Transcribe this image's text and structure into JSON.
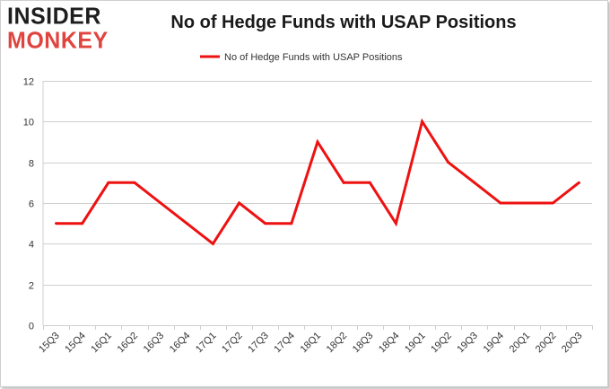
{
  "logo": {
    "line1": "INSIDER",
    "line2": "MONKEY"
  },
  "chart_data": {
    "type": "line",
    "title": "No of Hedge Funds with USAP Positions",
    "xlabel": "",
    "ylabel": "",
    "categories": [
      "15Q3",
      "15Q4",
      "16Q1",
      "16Q2",
      "16Q3",
      "16Q4",
      "17Q1",
      "17Q2",
      "17Q3",
      "17Q4",
      "18Q1",
      "18Q2",
      "18Q3",
      "18Q4",
      "19Q1",
      "19Q2",
      "19Q3",
      "19Q4",
      "20Q1",
      "20Q2",
      "20Q3"
    ],
    "series": [
      {
        "name": "No of Hedge Funds with USAP Positions",
        "color": "#ee1111",
        "values": [
          5,
          5,
          7,
          7,
          6,
          5,
          4,
          6,
          5,
          5,
          9,
          7,
          7,
          5,
          10,
          8,
          7,
          6,
          6,
          6,
          7
        ]
      }
    ],
    "ylim": [
      0,
      12
    ],
    "yticks": [
      0,
      2,
      4,
      6,
      8,
      10,
      12
    ],
    "grid": "horizontal",
    "legend": "top-center"
  }
}
